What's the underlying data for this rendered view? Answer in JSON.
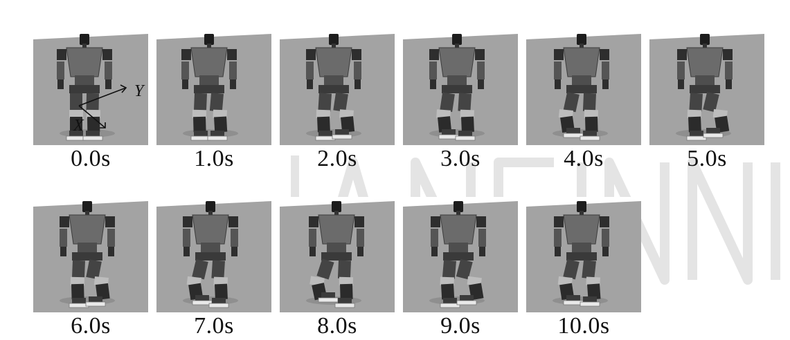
{
  "figure": {
    "frames": [
      {
        "time": "0.0s"
      },
      {
        "time": "1.0s"
      },
      {
        "time": "2.0s"
      },
      {
        "time": "3.0s"
      },
      {
        "time": "4.0s"
      },
      {
        "time": "5.0s"
      },
      {
        "time": "6.0s"
      },
      {
        "time": "7.0s"
      },
      {
        "time": "8.0s"
      },
      {
        "time": "9.0s"
      },
      {
        "time": "10.0s"
      }
    ],
    "axes": {
      "x_label": "X",
      "y_label": "Y"
    }
  }
}
